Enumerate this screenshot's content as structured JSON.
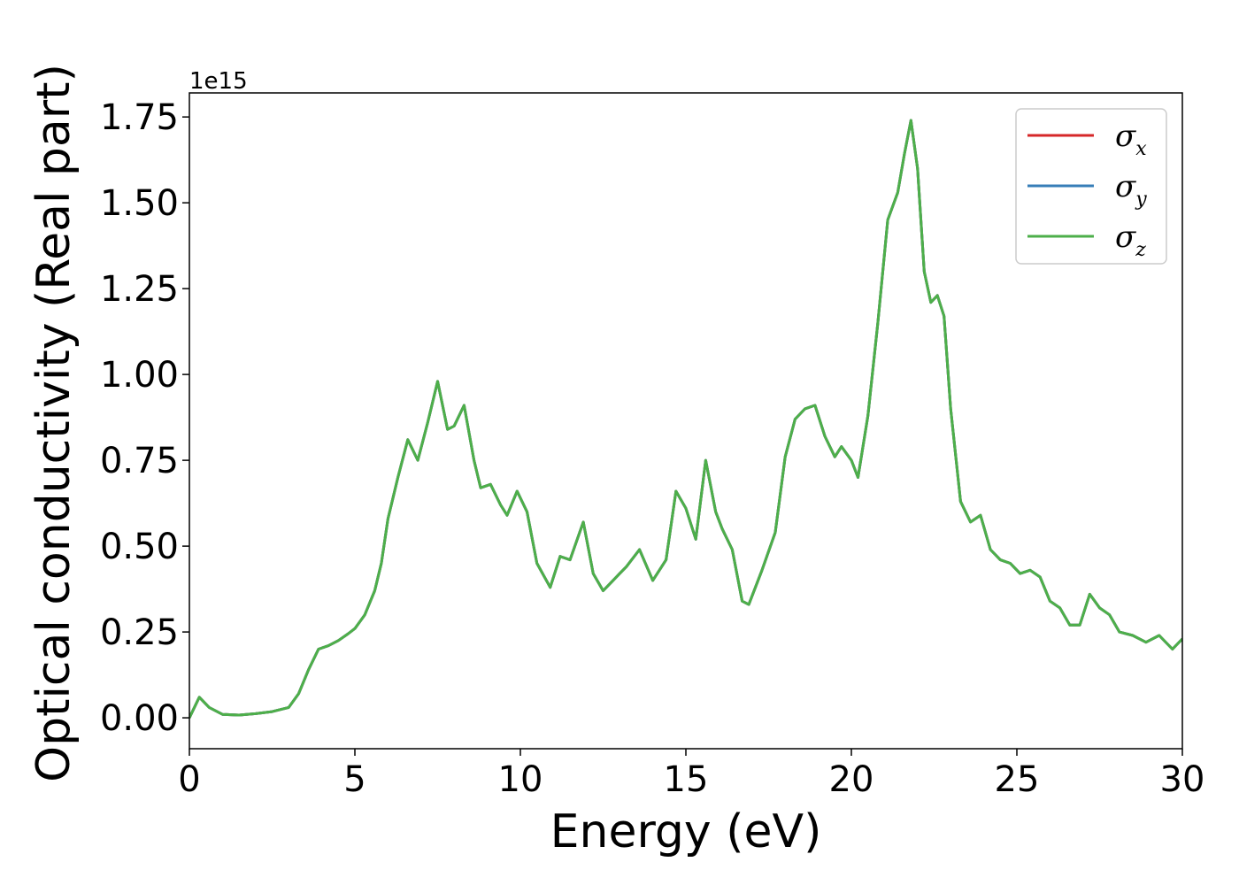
{
  "chart_data": {
    "type": "line",
    "title": "",
    "xlabel": "Energy (eV)",
    "ylabel": "Optical conductivity (Real part)",
    "y_offset_label": "1e15",
    "xlim": [
      0,
      30
    ],
    "ylim": [
      -0.09,
      1.82
    ],
    "x_ticks": [
      0,
      5,
      10,
      15,
      20,
      25,
      30
    ],
    "x_tick_labels": [
      "0",
      "5",
      "10",
      "15",
      "20",
      "25",
      "30"
    ],
    "y_ticks": [
      0.0,
      0.25,
      0.5,
      0.75,
      1.0,
      1.25,
      1.5,
      1.75
    ],
    "y_tick_labels": [
      "0.00",
      "0.25",
      "0.50",
      "0.75",
      "1.00",
      "1.25",
      "1.50",
      "1.75"
    ],
    "grid": false,
    "legend_position": "top-right",
    "x": [
      0,
      0.3,
      0.6,
      1.0,
      1.5,
      2.0,
      2.5,
      3.0,
      3.3,
      3.6,
      3.9,
      4.2,
      4.5,
      4.8,
      5.0,
      5.3,
      5.6,
      5.8,
      6.0,
      6.3,
      6.6,
      6.9,
      7.2,
      7.5,
      7.8,
      8.0,
      8.3,
      8.6,
      8.8,
      9.1,
      9.4,
      9.6,
      9.9,
      10.2,
      10.5,
      10.9,
      11.2,
      11.5,
      11.9,
      12.2,
      12.5,
      12.8,
      13.0,
      13.2,
      13.6,
      14.0,
      14.4,
      14.7,
      15.0,
      15.3,
      15.6,
      15.9,
      16.1,
      16.4,
      16.7,
      16.9,
      17.3,
      17.7,
      18.0,
      18.3,
      18.6,
      18.9,
      19.2,
      19.5,
      19.7,
      20.0,
      20.2,
      20.5,
      20.8,
      21.1,
      21.4,
      21.6,
      21.8,
      22.0,
      22.2,
      22.4,
      22.6,
      22.8,
      23.0,
      23.3,
      23.6,
      23.9,
      24.2,
      24.5,
      24.8,
      25.1,
      25.4,
      25.7,
      26.0,
      26.3,
      26.6,
      26.9,
      27.2,
      27.5,
      27.8,
      28.1,
      28.5,
      28.9,
      29.3,
      29.7,
      30.0
    ],
    "series": [
      {
        "name": "σx",
        "color": "#d62728",
        "values": [
          0.0,
          0.06,
          0.03,
          0.01,
          0.008,
          0.012,
          0.018,
          0.03,
          0.07,
          0.14,
          0.2,
          0.21,
          0.225,
          0.245,
          0.26,
          0.3,
          0.37,
          0.45,
          0.58,
          0.7,
          0.81,
          0.75,
          0.86,
          0.98,
          0.84,
          0.85,
          0.91,
          0.75,
          0.67,
          0.68,
          0.62,
          0.59,
          0.66,
          0.6,
          0.45,
          0.38,
          0.47,
          0.46,
          0.57,
          0.42,
          0.37,
          0.4,
          0.42,
          0.44,
          0.49,
          0.4,
          0.46,
          0.66,
          0.61,
          0.52,
          0.75,
          0.6,
          0.55,
          0.49,
          0.34,
          0.33,
          0.43,
          0.54,
          0.76,
          0.87,
          0.9,
          0.91,
          0.82,
          0.76,
          0.79,
          0.75,
          0.7,
          0.88,
          1.15,
          1.45,
          1.53,
          1.64,
          1.74,
          1.6,
          1.3,
          1.21,
          1.23,
          1.17,
          0.9,
          0.63,
          0.57,
          0.59,
          0.49,
          0.46,
          0.45,
          0.42,
          0.43,
          0.41,
          0.34,
          0.32,
          0.27,
          0.27,
          0.36,
          0.32,
          0.3,
          0.25,
          0.24,
          0.22,
          0.24,
          0.2,
          0.23
        ]
      },
      {
        "name": "σy",
        "color": "#377eb8",
        "values": [
          0.0,
          0.06,
          0.03,
          0.01,
          0.008,
          0.012,
          0.018,
          0.03,
          0.07,
          0.14,
          0.2,
          0.21,
          0.225,
          0.245,
          0.26,
          0.3,
          0.37,
          0.45,
          0.58,
          0.7,
          0.81,
          0.75,
          0.86,
          0.98,
          0.84,
          0.85,
          0.91,
          0.75,
          0.67,
          0.68,
          0.62,
          0.59,
          0.66,
          0.6,
          0.45,
          0.38,
          0.47,
          0.46,
          0.57,
          0.42,
          0.37,
          0.4,
          0.42,
          0.44,
          0.49,
          0.4,
          0.46,
          0.66,
          0.61,
          0.52,
          0.75,
          0.6,
          0.55,
          0.49,
          0.34,
          0.33,
          0.43,
          0.54,
          0.76,
          0.87,
          0.9,
          0.91,
          0.82,
          0.76,
          0.79,
          0.75,
          0.7,
          0.88,
          1.15,
          1.45,
          1.53,
          1.64,
          1.74,
          1.6,
          1.3,
          1.21,
          1.23,
          1.17,
          0.9,
          0.63,
          0.57,
          0.59,
          0.49,
          0.46,
          0.45,
          0.42,
          0.43,
          0.41,
          0.34,
          0.32,
          0.27,
          0.27,
          0.36,
          0.32,
          0.3,
          0.25,
          0.24,
          0.22,
          0.24,
          0.2,
          0.23
        ]
      },
      {
        "name": "σz",
        "color": "#4daf4a",
        "values": [
          0.0,
          0.06,
          0.03,
          0.01,
          0.008,
          0.012,
          0.018,
          0.03,
          0.07,
          0.14,
          0.2,
          0.21,
          0.225,
          0.245,
          0.26,
          0.3,
          0.37,
          0.45,
          0.58,
          0.7,
          0.81,
          0.75,
          0.86,
          0.98,
          0.84,
          0.85,
          0.91,
          0.75,
          0.67,
          0.68,
          0.62,
          0.59,
          0.66,
          0.6,
          0.45,
          0.38,
          0.47,
          0.46,
          0.57,
          0.42,
          0.37,
          0.4,
          0.42,
          0.44,
          0.49,
          0.4,
          0.46,
          0.66,
          0.61,
          0.52,
          0.75,
          0.6,
          0.55,
          0.49,
          0.34,
          0.33,
          0.43,
          0.54,
          0.76,
          0.87,
          0.9,
          0.91,
          0.82,
          0.76,
          0.79,
          0.75,
          0.7,
          0.88,
          1.15,
          1.45,
          1.53,
          1.64,
          1.74,
          1.6,
          1.3,
          1.21,
          1.23,
          1.17,
          0.9,
          0.63,
          0.57,
          0.59,
          0.49,
          0.46,
          0.45,
          0.42,
          0.43,
          0.41,
          0.34,
          0.32,
          0.27,
          0.27,
          0.36,
          0.32,
          0.3,
          0.25,
          0.24,
          0.22,
          0.24,
          0.2,
          0.23
        ]
      }
    ],
    "legend": [
      {
        "symbol": "σ",
        "subscript": "x",
        "color": "#d62728"
      },
      {
        "symbol": "σ",
        "subscript": "y",
        "color": "#377eb8"
      },
      {
        "symbol": "σ",
        "subscript": "z",
        "color": "#4daf4a"
      }
    ]
  }
}
